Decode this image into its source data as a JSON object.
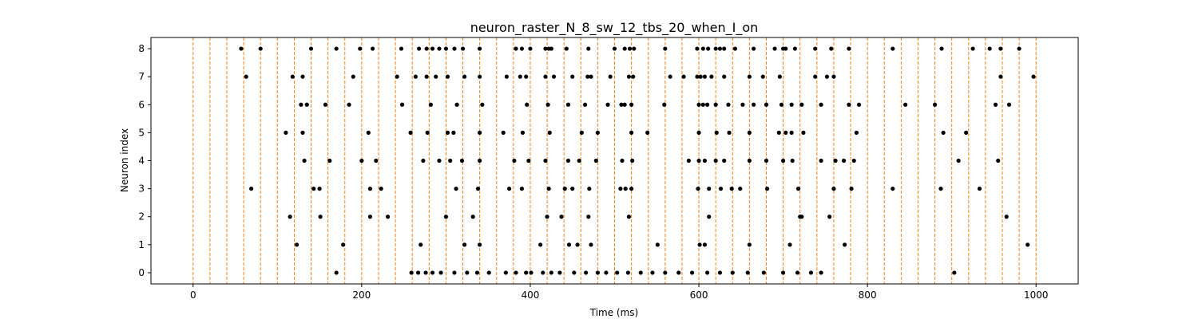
{
  "chart_data": {
    "type": "scatter",
    "title": "neuron_raster_N_8_sw_12_tbs_20_when_I_on",
    "xlabel": "Time (ms)",
    "ylabel": "Neuron index",
    "xlim": [
      -50,
      1050
    ],
    "ylim": [
      -0.4,
      8.4
    ],
    "xticks": [
      0,
      200,
      400,
      600,
      800,
      1000
    ],
    "yticks": [
      0,
      1,
      2,
      3,
      4,
      5,
      6,
      7,
      8
    ],
    "grid": false,
    "point_color": "#000000",
    "vline_color": "#ff7f0e",
    "vlines": [
      0,
      20,
      40,
      60,
      80,
      100,
      120,
      140,
      160,
      180,
      200,
      220,
      240,
      260,
      280,
      300,
      320,
      340,
      360,
      380,
      400,
      420,
      440,
      460,
      480,
      500,
      520,
      540,
      560,
      580,
      600,
      620,
      640,
      660,
      680,
      700,
      720,
      740,
      760,
      780,
      800,
      820,
      840,
      860,
      880,
      900,
      920,
      940,
      960,
      980,
      1000
    ],
    "spikes": [
      {
        "neuron": 8,
        "times": [
          57,
          80,
          140,
          170,
          198,
          213,
          247,
          268,
          277,
          284,
          292,
          300,
          310,
          320,
          340,
          383,
          390,
          400,
          418,
          422,
          425,
          443,
          469,
          500,
          512,
          518,
          523,
          560,
          598,
          605,
          611,
          620,
          625,
          630,
          643,
          665,
          690,
          700,
          703,
          714,
          738,
          757,
          778,
          830,
          888,
          925,
          945,
          958,
          980
        ]
      },
      {
        "neuron": 7,
        "times": [
          63,
          118,
          130,
          190,
          242,
          264,
          277,
          288,
          302,
          322,
          340,
          372,
          388,
          395,
          418,
          428,
          450,
          468,
          472,
          495,
          517,
          522,
          566,
          582,
          598,
          602,
          607,
          615,
          630,
          660,
          676,
          696,
          738,
          752,
          760,
          958,
          997
        ]
      },
      {
        "neuron": 6,
        "times": [
          128,
          135,
          157,
          185,
          248,
          282,
          313,
          343,
          396,
          421,
          445,
          465,
          492,
          508,
          512,
          520,
          559,
          600,
          605,
          610,
          620,
          635,
          652,
          665,
          680,
          698,
          710,
          722,
          745,
          778,
          790,
          845,
          880,
          952,
          968
        ]
      },
      {
        "neuron": 5,
        "times": [
          110,
          130,
          208,
          258,
          278,
          302,
          309,
          340,
          368,
          391,
          423,
          461,
          480,
          520,
          539,
          600,
          621,
          636,
          660,
          695,
          703,
          710,
          724,
          787,
          890,
          917
        ]
      },
      {
        "neuron": 4,
        "times": [
          132,
          162,
          200,
          217,
          273,
          292,
          305,
          319,
          340,
          381,
          398,
          418,
          445,
          458,
          478,
          509,
          521,
          588,
          600,
          607,
          620,
          630,
          660,
          680,
          700,
          711,
          745,
          762,
          772,
          784,
          908,
          955
        ]
      },
      {
        "neuron": 3,
        "times": [
          69,
          143,
          150,
          210,
          223,
          312,
          338,
          375,
          390,
          422,
          441,
          450,
          470,
          507,
          513,
          520,
          599,
          612,
          626,
          639,
          649,
          681,
          718,
          760,
          781,
          830,
          887,
          933
        ]
      },
      {
        "neuron": 2,
        "times": [
          115,
          151,
          210,
          231,
          300,
          332,
          420,
          437,
          469,
          517,
          612,
          722,
          720,
          755,
          965
        ]
      },
      {
        "neuron": 1,
        "times": [
          123,
          178,
          270,
          322,
          340,
          412,
          446,
          456,
          472,
          551,
          601,
          607,
          660,
          708,
          773,
          990
        ]
      },
      {
        "neuron": 0,
        "times": [
          170,
          259,
          267,
          276,
          284,
          294,
          310,
          325,
          337,
          351,
          371,
          383,
          395,
          401,
          415,
          425,
          435,
          452,
          466,
          480,
          490,
          503,
          516,
          531,
          545,
          560,
          576,
          592,
          610,
          625,
          640,
          658,
          677,
          700,
          717,
          733,
          745,
          903
        ]
      }
    ]
  }
}
